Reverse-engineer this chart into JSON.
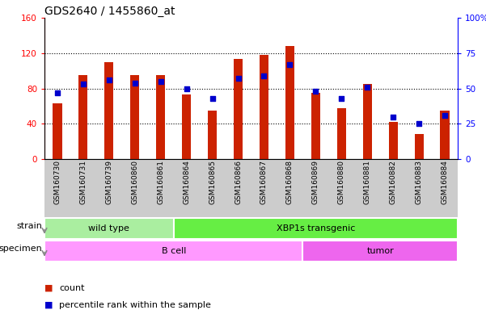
{
  "title": "GDS2640 / 1455860_at",
  "samples": [
    "GSM160730",
    "GSM160731",
    "GSM160739",
    "GSM160860",
    "GSM160861",
    "GSM160864",
    "GSM160865",
    "GSM160866",
    "GSM160867",
    "GSM160868",
    "GSM160869",
    "GSM160880",
    "GSM160881",
    "GSM160882",
    "GSM160883",
    "GSM160884"
  ],
  "counts": [
    63,
    95,
    110,
    95,
    95,
    73,
    55,
    113,
    118,
    128,
    75,
    58,
    85,
    42,
    28,
    55
  ],
  "percentiles": [
    47,
    53,
    56,
    54,
    55,
    50,
    43,
    57,
    59,
    67,
    48,
    43,
    51,
    30,
    25,
    31
  ],
  "ylim_left": [
    0,
    160
  ],
  "ylim_right": [
    0,
    100
  ],
  "yticks_left": [
    0,
    40,
    80,
    120,
    160
  ],
  "yticks_right": [
    0,
    25,
    50,
    75,
    100
  ],
  "bar_color": "#cc2200",
  "dot_color": "#0000cc",
  "strain_groups": [
    {
      "label": "wild type",
      "start": 0,
      "end": 4,
      "color": "#aaeea0"
    },
    {
      "label": "XBP1s transgenic",
      "start": 5,
      "end": 15,
      "color": "#66ee44"
    }
  ],
  "specimen_groups": [
    {
      "label": "B cell",
      "start": 0,
      "end": 9,
      "color": "#ff99ff"
    },
    {
      "label": "tumor",
      "start": 10,
      "end": 15,
      "color": "#ee66ee"
    }
  ],
  "grid_yticks": [
    40,
    80,
    120
  ],
  "legend_count_color": "#cc2200",
  "legend_dot_color": "#0000cc",
  "strain_label": "strain",
  "specimen_label": "specimen",
  "xlabel_bg": "#cccccc"
}
